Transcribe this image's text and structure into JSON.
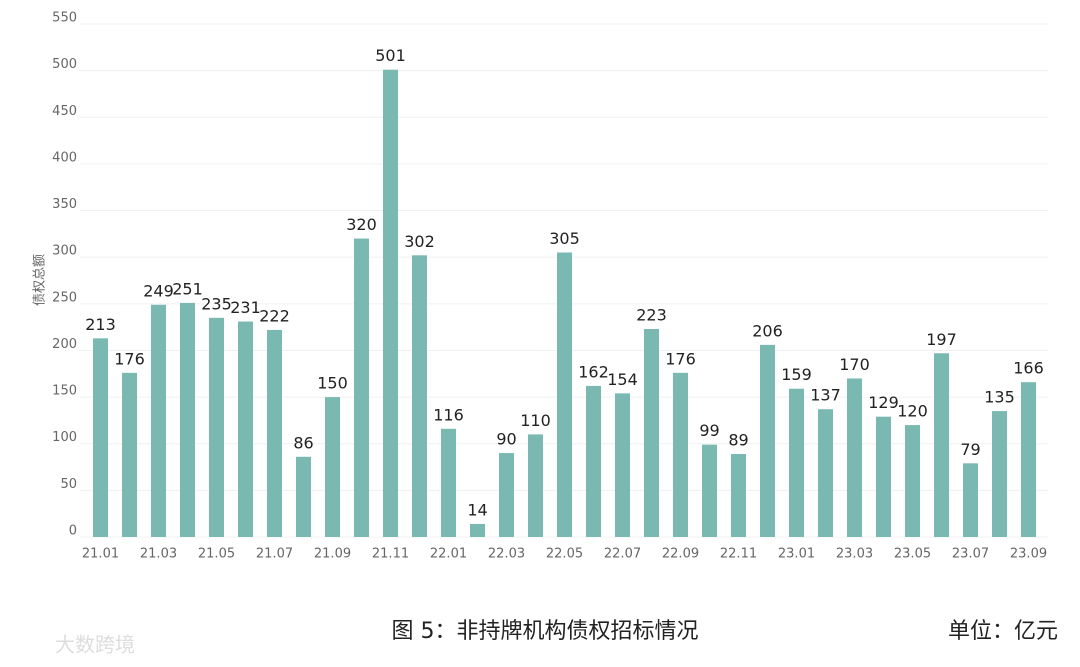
{
  "chart_data": {
    "type": "bar",
    "y_axis_label": "债权总额",
    "caption": "图 5：非持牌机构债权招标情况",
    "unit": "单位：亿元",
    "watermark": "大数跨境",
    "categories": [
      "21.01",
      null,
      "21.03",
      null,
      "21.05",
      null,
      "21.07",
      null,
      "21.09",
      null,
      "21.11",
      null,
      "22.01",
      null,
      "22.03",
      null,
      "22.05",
      null,
      "22.07",
      null,
      "22.09",
      null,
      "22.11",
      null,
      "23.01",
      null,
      "23.03",
      null,
      "23.05",
      null,
      "23.07",
      null,
      "23.09"
    ],
    "values": [
      213,
      176,
      249,
      251,
      235,
      231,
      222,
      86,
      150,
      320,
      501,
      302,
      116,
      14,
      90,
      110,
      305,
      162,
      154,
      223,
      176,
      99,
      89,
      206,
      159,
      137,
      170,
      129,
      120,
      197,
      79,
      135,
      166
    ],
    "color": "#7ab8b2",
    "ylim": [
      0,
      550
    ],
    "yticks": [
      0,
      50,
      100,
      150,
      200,
      250,
      300,
      350,
      400,
      450,
      500,
      550
    ],
    "grid": true
  }
}
